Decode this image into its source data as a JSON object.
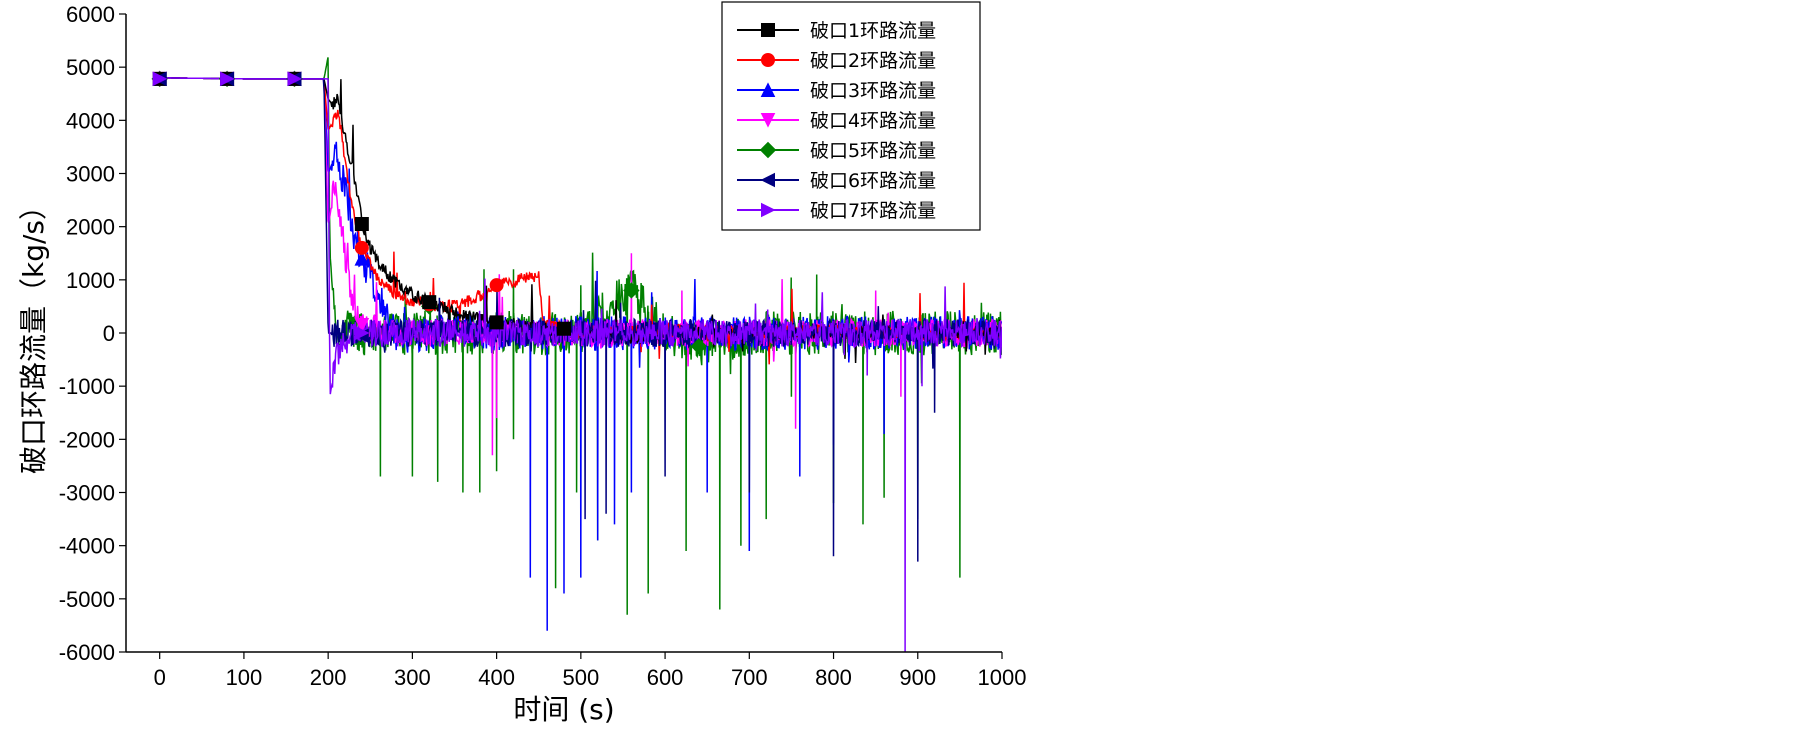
{
  "chart_data": {
    "type": "line",
    "xlabel": "时间 (s)",
    "ylabel": "破口环路流量（kg/s）",
    "xlim": [
      -40,
      1000
    ],
    "ylim": [
      -6000,
      6000
    ],
    "xticks": [
      0,
      100,
      200,
      300,
      400,
      500,
      600,
      700,
      800,
      900,
      1000
    ],
    "yticks": [
      -6000,
      -5000,
      -4000,
      -3000,
      -2000,
      -1000,
      0,
      1000,
      2000,
      3000,
      4000,
      5000,
      6000
    ],
    "legend_position": "top-right",
    "series": [
      {
        "name": "破口1环路流量",
        "color": "#000000",
        "marker": "square",
        "points": [
          [
            0,
            4800
          ],
          [
            100,
            4780
          ],
          [
            195,
            4780
          ],
          [
            200,
            4400
          ],
          [
            205,
            4300
          ],
          [
            212,
            4400
          ],
          [
            220,
            3700
          ],
          [
            230,
            3000
          ],
          [
            240,
            2100
          ],
          [
            250,
            1600
          ],
          [
            260,
            1300
          ],
          [
            280,
            950
          ],
          [
            300,
            720
          ],
          [
            320,
            600
          ],
          [
            340,
            450
          ],
          [
            360,
            320
          ],
          [
            400,
            200
          ],
          [
            450,
            100
          ],
          [
            500,
            0
          ],
          [
            560,
            -100
          ],
          [
            600,
            0
          ],
          [
            700,
            20
          ],
          [
            800,
            10
          ],
          [
            900,
            0
          ],
          [
            1000,
            0
          ]
        ],
        "markers": [
          [
            0,
            4780
          ],
          [
            80,
            4780
          ],
          [
            160,
            4780
          ],
          [
            240,
            2050
          ],
          [
            320,
            580
          ],
          [
            400,
            200
          ],
          [
            480,
            80
          ]
        ]
      },
      {
        "name": "破口2环路流量",
        "color": "#ff0000",
        "marker": "circle",
        "points": [
          [
            0,
            4800
          ],
          [
            100,
            4780
          ],
          [
            195,
            4780
          ],
          [
            200,
            3800
          ],
          [
            212,
            4200
          ],
          [
            220,
            3200
          ],
          [
            230,
            2300
          ],
          [
            240,
            1600
          ],
          [
            260,
            1000
          ],
          [
            280,
            750
          ],
          [
            300,
            600
          ],
          [
            320,
            520
          ],
          [
            340,
            480
          ],
          [
            360,
            560
          ],
          [
            380,
            700
          ],
          [
            400,
            900
          ],
          [
            420,
            950
          ],
          [
            440,
            1100
          ],
          [
            450,
            1050
          ],
          [
            455,
            200
          ],
          [
            480,
            100
          ],
          [
            500,
            0
          ],
          [
            600,
            50
          ],
          [
            700,
            0
          ],
          [
            800,
            50
          ],
          [
            900,
            0
          ],
          [
            1000,
            0
          ]
        ],
        "markers": [
          [
            0,
            4780
          ],
          [
            80,
            4780
          ],
          [
            160,
            4780
          ],
          [
            240,
            1600
          ],
          [
            320,
            540
          ],
          [
            400,
            900
          ]
        ]
      },
      {
        "name": "破口3环路流量",
        "color": "#0000ff",
        "marker": "triangle-up",
        "points": [
          [
            0,
            4800
          ],
          [
            100,
            4780
          ],
          [
            195,
            4780
          ],
          [
            200,
            3000
          ],
          [
            210,
            3400
          ],
          [
            220,
            2700
          ],
          [
            230,
            1900
          ],
          [
            240,
            1400
          ],
          [
            250,
            1100
          ],
          [
            260,
            700
          ],
          [
            270,
            300
          ],
          [
            280,
            0
          ],
          [
            300,
            -100
          ],
          [
            350,
            100
          ],
          [
            400,
            0
          ],
          [
            500,
            0
          ],
          [
            600,
            0
          ],
          [
            700,
            0
          ],
          [
            800,
            0
          ],
          [
            900,
            0
          ],
          [
            1000,
            0
          ]
        ],
        "markers": [
          [
            0,
            4780
          ],
          [
            80,
            4780
          ],
          [
            160,
            4780
          ],
          [
            240,
            1400
          ]
        ],
        "spikes": [
          [
            460,
            -5600
          ],
          [
            480,
            -4900
          ],
          [
            500,
            -4600
          ],
          [
            520,
            -3900
          ],
          [
            540,
            -3600
          ],
          [
            650,
            -3000
          ],
          [
            700,
            -4100
          ],
          [
            760,
            -2700
          ],
          [
            800,
            -2100
          ],
          [
            860,
            -1900
          ],
          [
            440,
            -4600
          ],
          [
            560,
            -3000
          ]
        ]
      },
      {
        "name": "破口4环路流量",
        "color": "#ff00ff",
        "marker": "triangle-down",
        "points": [
          [
            0,
            4800
          ],
          [
            100,
            4780
          ],
          [
            195,
            4780
          ],
          [
            200,
            2000
          ],
          [
            208,
            2800
          ],
          [
            215,
            2100
          ],
          [
            225,
            900
          ],
          [
            235,
            300
          ],
          [
            250,
            100
          ],
          [
            300,
            0
          ],
          [
            400,
            0
          ],
          [
            500,
            0
          ],
          [
            600,
            0
          ],
          [
            700,
            0
          ],
          [
            800,
            0
          ],
          [
            900,
            0
          ],
          [
            1000,
            0
          ]
        ],
        "markers": [
          [
            0,
            4780
          ],
          [
            80,
            4780
          ],
          [
            160,
            4780
          ],
          [
            240,
            150
          ]
        ],
        "spikes": [
          [
            395,
            -2300
          ],
          [
            400,
            -1600
          ],
          [
            560,
            1500
          ],
          [
            620,
            800
          ],
          [
            755,
            -1800
          ],
          [
            850,
            800
          ],
          [
            880,
            -1200
          ]
        ]
      },
      {
        "name": "破口5环路流量",
        "color": "#008000",
        "marker": "diamond",
        "points": [
          [
            0,
            4800
          ],
          [
            100,
            4780
          ],
          [
            195,
            4780
          ],
          [
            200,
            5200
          ],
          [
            202,
            1500
          ],
          [
            210,
            0
          ],
          [
            300,
            0
          ],
          [
            400,
            0
          ],
          [
            500,
            0
          ],
          [
            560,
            800
          ],
          [
            600,
            0
          ],
          [
            640,
            -250
          ],
          [
            700,
            0
          ],
          [
            800,
            0
          ],
          [
            900,
            0
          ],
          [
            1000,
            0
          ]
        ],
        "markers": [
          [
            0,
            4780
          ],
          [
            80,
            4780
          ],
          [
            160,
            4780
          ],
          [
            320,
            500
          ],
          [
            560,
            800
          ],
          [
            640,
            -250
          ]
        ],
        "spikes": [
          [
            262,
            -2700
          ],
          [
            300,
            -2700
          ],
          [
            330,
            -2800
          ],
          [
            360,
            -3000
          ],
          [
            380,
            -3000
          ],
          [
            400,
            -2600
          ],
          [
            420,
            -2000
          ],
          [
            470,
            -4800
          ],
          [
            495,
            -3000
          ],
          [
            520,
            -3900
          ],
          [
            555,
            -5300
          ],
          [
            580,
            -4900
          ],
          [
            625,
            -4100
          ],
          [
            665,
            -5200
          ],
          [
            690,
            -4000
          ],
          [
            720,
            -3500
          ],
          [
            750,
            -1200
          ],
          [
            800,
            -3200
          ],
          [
            835,
            -3600
          ],
          [
            860,
            -3100
          ],
          [
            900,
            -3500
          ],
          [
            950,
            -4600
          ],
          [
            385,
            1200
          ],
          [
            420,
            1200
          ],
          [
            500,
            900
          ],
          [
            560,
            1000
          ],
          [
            780,
            1100
          ]
        ]
      },
      {
        "name": "破口6环路流量",
        "color": "#000080",
        "marker": "triangle-left",
        "points": [
          [
            0,
            4800
          ],
          [
            100,
            4780
          ],
          [
            195,
            4780
          ],
          [
            200,
            0
          ],
          [
            300,
            0
          ],
          [
            400,
            0
          ],
          [
            500,
            0
          ],
          [
            600,
            0
          ],
          [
            700,
            0
          ],
          [
            800,
            0
          ],
          [
            900,
            0
          ],
          [
            1000,
            0
          ]
        ],
        "markers": [
          [
            0,
            4780
          ],
          [
            80,
            4780
          ],
          [
            160,
            4780
          ],
          [
            240,
            -50
          ]
        ],
        "spikes": [
          [
            505,
            -3500
          ],
          [
            530,
            -3400
          ],
          [
            600,
            -2700
          ],
          [
            700,
            -3000
          ],
          [
            800,
            -4200
          ],
          [
            900,
            -4300
          ],
          [
            1000,
            -3300
          ],
          [
            920,
            -1500
          ]
        ]
      },
      {
        "name": "破口7环路流量",
        "color": "#8000ff",
        "marker": "triangle-right",
        "points": [
          [
            0,
            4800
          ],
          [
            100,
            4780
          ],
          [
            195,
            4780
          ],
          [
            200,
            4780
          ],
          [
            202,
            -1200
          ],
          [
            210,
            -400
          ],
          [
            230,
            0
          ],
          [
            300,
            0
          ],
          [
            400,
            0
          ],
          [
            500,
            0
          ],
          [
            600,
            0
          ],
          [
            700,
            0
          ],
          [
            800,
            0
          ],
          [
            900,
            0
          ],
          [
            1000,
            0
          ]
        ],
        "markers": [
          [
            0,
            4780
          ],
          [
            80,
            4780
          ],
          [
            160,
            4780
          ],
          [
            240,
            0
          ]
        ],
        "spikes": [
          [
            885,
            -6000
          ],
          [
            905,
            -1000
          ],
          [
            840,
            -800
          ]
        ]
      }
    ]
  }
}
